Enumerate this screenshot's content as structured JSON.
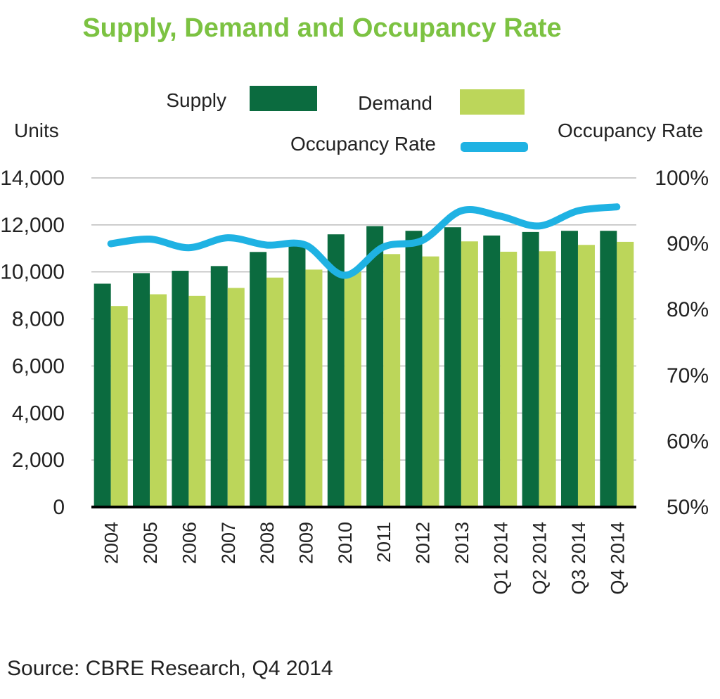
{
  "chart_data": {
    "type": "bar",
    "title": "Supply, Demand and Occupancy Rate",
    "ylabel": "Units",
    "y2label": "Occupancy Rate",
    "ylim": [
      0,
      14000
    ],
    "y2lim": [
      50,
      100
    ],
    "yticks": [
      "0",
      "2,000",
      "4,000",
      "6,000",
      "8,000",
      "10,000",
      "12,000",
      "14,000"
    ],
    "y2ticks": [
      "50%",
      "60%",
      "70%",
      "80%",
      "90%",
      "100%"
    ],
    "categories": [
      "2004",
      "2005",
      "2006",
      "2007",
      "2008",
      "2009",
      "2010",
      "2011",
      "2012",
      "2013",
      "Q1 2014",
      "Q2 2014",
      "Q3 2014",
      "Q4 2014"
    ],
    "series": [
      {
        "name": "Supply",
        "type": "bar",
        "axis": "left",
        "color": "#0b6b3f",
        "values": [
          9500,
          9950,
          10050,
          10250,
          10850,
          11150,
          11600,
          11950,
          11750,
          11900,
          11550,
          11700,
          11750,
          11750
        ]
      },
      {
        "name": "Demand",
        "type": "bar",
        "axis": "left",
        "color": "#bcd65a",
        "values": [
          8550,
          9050,
          8980,
          9320,
          9760,
          10100,
          10000,
          10760,
          10660,
          11300,
          10860,
          10880,
          11150,
          11280
        ]
      },
      {
        "name": "Occupancy Rate",
        "type": "line",
        "axis": "right",
        "color": "#1fb2e3",
        "values": [
          90,
          90.7,
          89.4,
          90.9,
          89.8,
          89.8,
          85.2,
          89.5,
          90.5,
          95,
          94.2,
          92.7,
          95,
          95.6
        ]
      }
    ],
    "legend": {
      "supply_label": "Supply",
      "demand_label": "Demand",
      "occupancy_label": "Occupancy Rate"
    },
    "source": "Source: CBRE Research, Q4 2014"
  }
}
